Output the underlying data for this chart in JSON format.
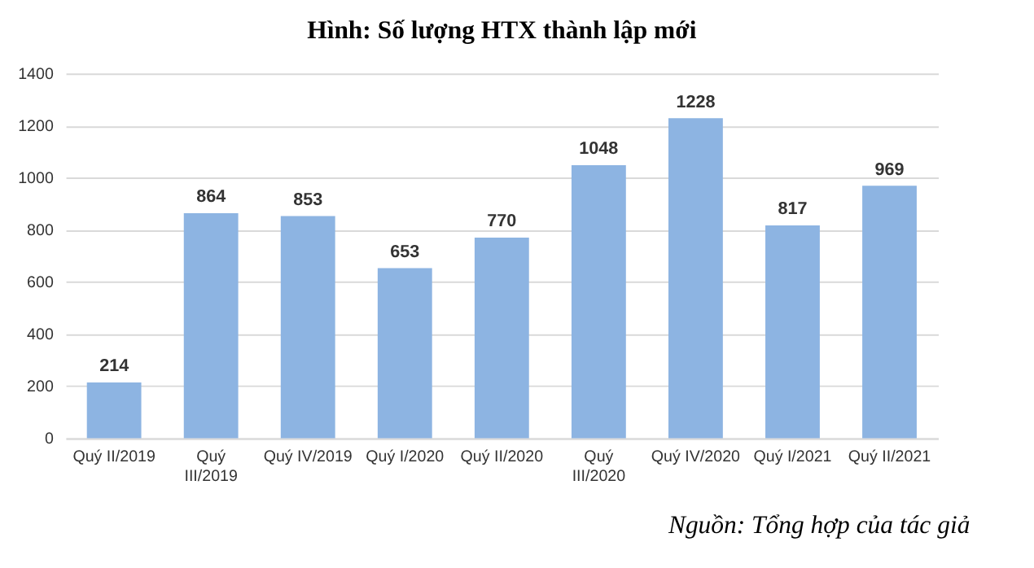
{
  "chart_data": {
    "type": "bar",
    "title": "Hình: Số lượng HTX thành lập mới",
    "categories": [
      "Quý II/2019",
      "Quý III/2019",
      "Quý IV/2019",
      "Quý I/2020",
      "Quý II/2020",
      "Quý III/2020",
      "Quý IV/2020",
      "Quý I/2021",
      "Quý II/2021"
    ],
    "values": [
      214,
      864,
      853,
      653,
      770,
      1048,
      1228,
      817,
      969
    ],
    "color": "#8db4e2",
    "ylim": [
      0,
      1400
    ],
    "yticks": [
      0,
      200,
      400,
      600,
      800,
      1000,
      1200,
      1400
    ],
    "grid": "y",
    "data_labels": true,
    "annotations": [
      "Nguồn: Tổng hợp của tác giả"
    ]
  }
}
